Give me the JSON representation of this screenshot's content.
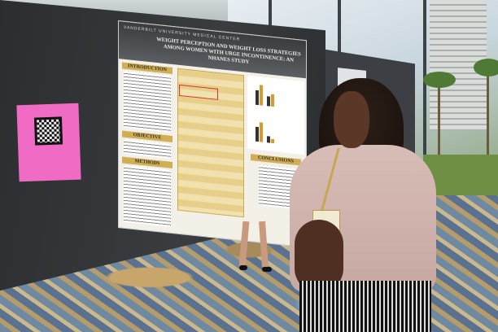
{
  "poster": {
    "institution": "VANDERBILT UNIVERSITY MEDICAL CENTER",
    "title": "WEIGHT PERCEPTION AND WEIGHT LOSS STRATEGIES AMONG WOMEN WITH URGE INCONTINENCE: AN NHANES STUDY",
    "sections": {
      "introduction": "INTRODUCTION",
      "objective": "OBJECTIVE",
      "methods": "METHODS",
      "conclusions": "CONCLUSIONS"
    },
    "accent_color": "#cfae55",
    "banner_color": "#3a3c3e"
  },
  "qr_note": {
    "color": "#f06cc4",
    "icon": "qr-code-icon"
  }
}
